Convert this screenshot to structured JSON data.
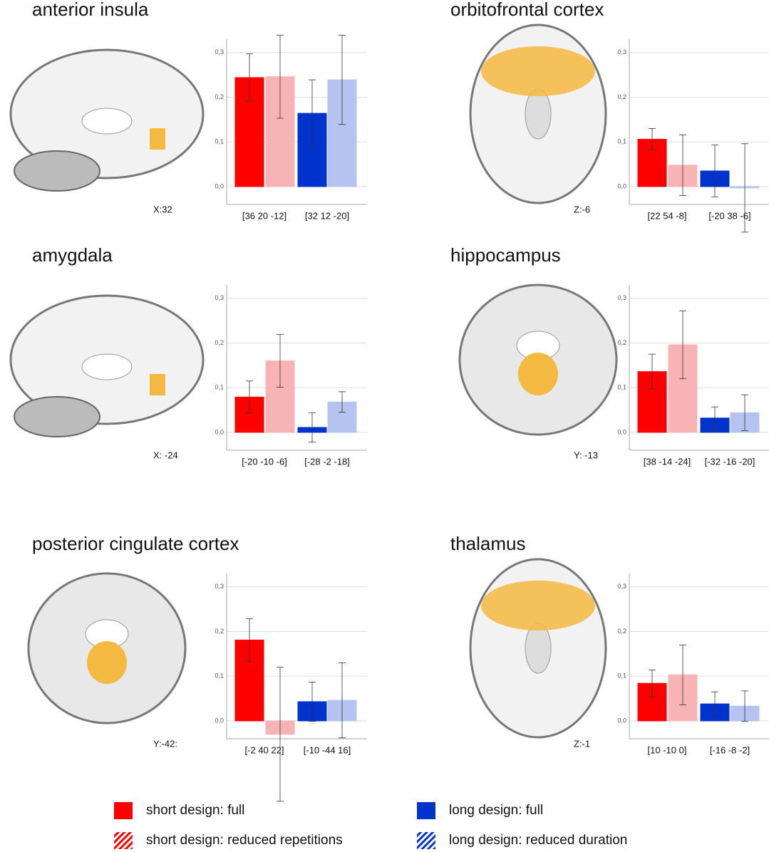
{
  "legend": [
    {
      "name": "short design: full",
      "color": "#ff0000",
      "fill": "solid"
    },
    {
      "name": "short design: reduced repetitions",
      "color": "#ff0000",
      "fill": "hatched"
    },
    {
      "name": "long design: full",
      "color": "#0033cc",
      "fill": "solid"
    },
    {
      "name": "long design: reduced duration",
      "color": "#0033cc",
      "fill": "hatched"
    }
  ],
  "bar_colors": [
    "#ff0000",
    "#f8b4b4",
    "#0033cc",
    "#b4c3ef"
  ],
  "chart_data": [
    {
      "type": "bar",
      "title": "anterior insula",
      "slice_label": "X:32",
      "view": "sagittal",
      "categories": [
        "[36 20 -12]",
        "[32 12 -20]"
      ],
      "series": [
        {
          "values": [
            0.244,
            null
          ],
          "errors": [
            0.053,
            null
          ]
        },
        {
          "values": [
            0.246,
            null
          ],
          "errors": [
            0.093,
            null
          ]
        },
        {
          "values": [
            null,
            0.164
          ],
          "errors": [
            null,
            0.075
          ]
        },
        {
          "values": [
            null,
            0.239
          ],
          "errors": [
            null,
            0.1
          ]
        }
      ],
      "ylim": [
        -0.04,
        0.33
      ],
      "yticks": [
        {
          "value": 0,
          "label": "0,0"
        },
        {
          "value": 0.1,
          "label": "0,1"
        },
        {
          "value": 0.2,
          "label": "0,2"
        },
        {
          "value": 0.3,
          "label": "0,3"
        }
      ],
      "grid": true
    },
    {
      "type": "bar",
      "title": "orbitofrontal cortex",
      "slice_label": "Z:-6",
      "view": "axial",
      "categories": [
        "[22 54 -8]",
        "[-20 38 -6]"
      ],
      "series": [
        {
          "values": [
            0.106,
            null
          ],
          "errors": [
            0.024,
            null
          ]
        },
        {
          "values": [
            0.048,
            null
          ],
          "errors": [
            0.068,
            null
          ]
        },
        {
          "values": [
            null,
            0.035
          ],
          "errors": [
            null,
            0.058
          ]
        },
        {
          "values": [
            null,
            -0.003
          ],
          "errors": [
            null,
            0.099
          ]
        }
      ],
      "ylim": [
        -0.04,
        0.33
      ],
      "yticks": [
        {
          "value": 0,
          "label": "0,0"
        },
        {
          "value": 0.1,
          "label": "0,1"
        },
        {
          "value": 0.2,
          "label": "0,2"
        },
        {
          "value": 0.3,
          "label": "0,3"
        }
      ],
      "grid": true
    },
    {
      "type": "bar",
      "title": "amygdala",
      "slice_label": "X: -24",
      "view": "sagittal",
      "categories": [
        "[-20 -10 -6]",
        "[-28 -2 -18]"
      ],
      "series": [
        {
          "values": [
            0.079,
            null
          ],
          "errors": [
            0.036,
            null
          ]
        },
        {
          "values": [
            0.16,
            null
          ],
          "errors": [
            0.059,
            null
          ]
        },
        {
          "values": [
            null,
            0.011
          ],
          "errors": [
            null,
            0.033
          ]
        },
        {
          "values": [
            null,
            0.068
          ],
          "errors": [
            null,
            0.023
          ]
        }
      ],
      "ylim": [
        -0.04,
        0.33
      ],
      "yticks": [
        {
          "value": 0,
          "label": "0,0"
        },
        {
          "value": 0.1,
          "label": "0,1"
        },
        {
          "value": 0.2,
          "label": "0,2"
        },
        {
          "value": 0.3,
          "label": "0,3"
        }
      ],
      "grid": true
    },
    {
      "type": "bar",
      "title": "hippocampus",
      "slice_label": "Y: -13",
      "view": "coronal",
      "categories": [
        "[38 -14 -24]",
        "[-32 -16 -20]"
      ],
      "series": [
        {
          "values": [
            0.136,
            null
          ],
          "errors": [
            0.039,
            null
          ]
        },
        {
          "values": [
            0.196,
            null
          ],
          "errors": [
            0.076,
            null
          ]
        },
        {
          "values": [
            null,
            0.032
          ],
          "errors": [
            null,
            0.025
          ]
        },
        {
          "values": [
            null,
            0.044
          ],
          "errors": [
            null,
            0.04
          ]
        }
      ],
      "ylim": [
        -0.04,
        0.33
      ],
      "yticks": [
        {
          "value": 0,
          "label": "0,0"
        },
        {
          "value": 0.1,
          "label": "0,1"
        },
        {
          "value": 0.2,
          "label": "0,2"
        },
        {
          "value": 0.3,
          "label": "0,3"
        }
      ],
      "grid": true
    },
    {
      "type": "bar",
      "title": "posterior cingulate cortex",
      "slice_label": "Y:-42:",
      "view": "coronal",
      "categories": [
        "[-2 40 22]",
        "[-10 -44 16]"
      ],
      "series": [
        {
          "values": [
            0.181,
            null
          ],
          "errors": [
            0.048,
            null
          ]
        },
        {
          "values": [
            -0.03,
            null
          ],
          "errors": [
            0.15,
            null
          ]
        },
        {
          "values": [
            null,
            0.043
          ],
          "errors": [
            null,
            0.044
          ]
        },
        {
          "values": [
            null,
            0.046
          ],
          "errors": [
            null,
            0.084
          ]
        }
      ],
      "ylim": [
        -0.04,
        0.33
      ],
      "yticks": [
        {
          "value": 0,
          "label": "0,0"
        },
        {
          "value": 0.1,
          "label": "0,1"
        },
        {
          "value": 0.2,
          "label": "0,2"
        },
        {
          "value": 0.3,
          "label": "0,3"
        }
      ],
      "grid": true
    },
    {
      "type": "bar",
      "title": "thalamus",
      "slice_label": "Z:-1",
      "view": "axial",
      "categories": [
        "[10 -10 0]",
        "[-16 -8 -2]"
      ],
      "series": [
        {
          "values": [
            0.084,
            null
          ],
          "errors": [
            0.03,
            null
          ]
        },
        {
          "values": [
            0.103,
            null
          ],
          "errors": [
            0.067,
            null
          ]
        },
        {
          "values": [
            null,
            0.038
          ],
          "errors": [
            null,
            0.027
          ]
        },
        {
          "values": [
            null,
            0.033
          ],
          "errors": [
            null,
            0.034
          ]
        }
      ],
      "ylim": [
        -0.04,
        0.33
      ],
      "yticks": [
        {
          "value": 0,
          "label": "0,0"
        },
        {
          "value": 0.1,
          "label": "0,1"
        },
        {
          "value": 0.2,
          "label": "0,2"
        },
        {
          "value": 0.3,
          "label": "0,3"
        }
      ],
      "grid": true
    }
  ]
}
